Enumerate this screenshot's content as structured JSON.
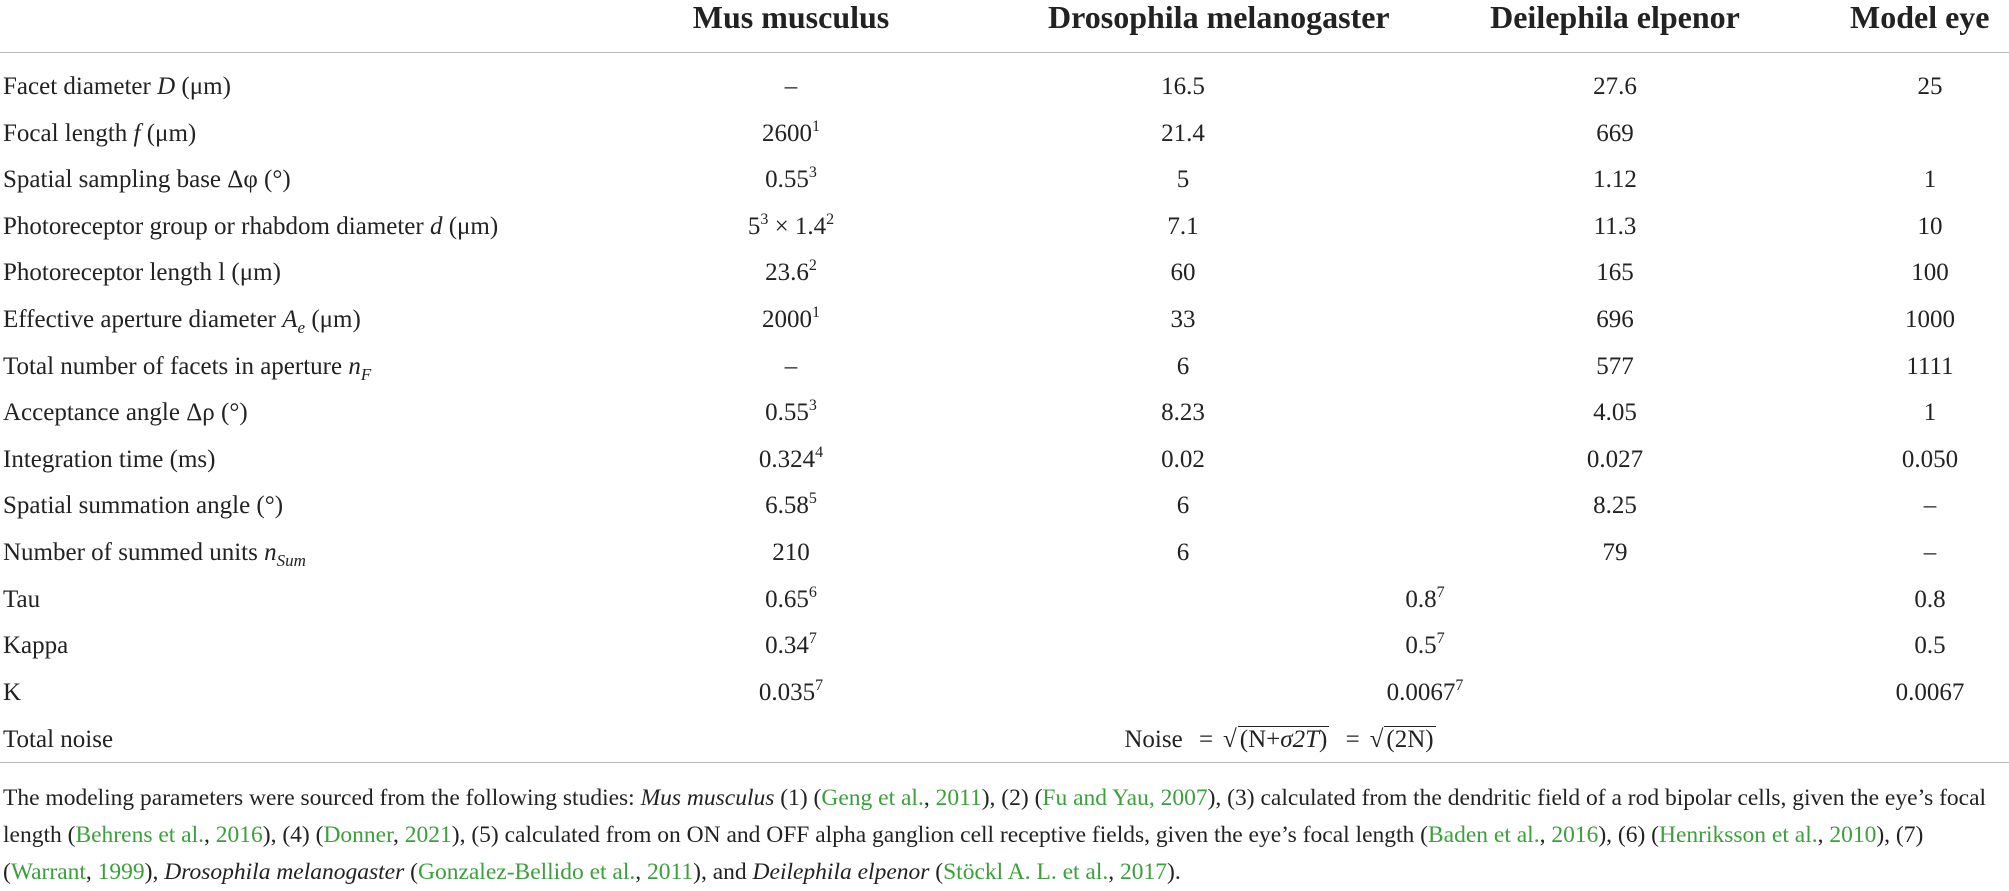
{
  "headers": {
    "col1": "Mus musculus",
    "col2": "Drosophila melanogaster",
    "col3": "Deilephila elpenor",
    "col4": "Model eye"
  },
  "rows": [
    {
      "label_pre": "Facet diameter ",
      "label_var": "D",
      "label_post": " (μm)",
      "v1": "–",
      "v2": "16.5",
      "v3": "27.6",
      "v4": "25"
    },
    {
      "label_pre": "Focal length ",
      "label_var": "f",
      "label_post": " (μm)",
      "v1": "2600",
      "v1_sup": "1",
      "v2": "21.4",
      "v3": "669",
      "v4": ""
    },
    {
      "label_pre": "Spatial sampling base Δφ (°)",
      "v1": "0.55",
      "v1_sup": "3",
      "v2": "5",
      "v3": "1.12",
      "v4": "1"
    },
    {
      "label_pre": "Photoreceptor group or rhabdom diameter ",
      "label_var": "d",
      "label_post": " (μm)",
      "v1a": "5",
      "v1a_sup": "3",
      "v1b": " × 1.4",
      "v1b_sup": "2",
      "v2": "7.1",
      "v3": "11.3",
      "v4": "10"
    },
    {
      "label_pre": "Photoreceptor length l (μm)",
      "v1": "23.6",
      "v1_sup": "2",
      "v2": "60",
      "v3": "165",
      "v4": "100"
    },
    {
      "label_pre": "Effective aperture diameter ",
      "label_var": "A",
      "label_sub": "e",
      "label_post": " (μm)",
      "v1": "2000",
      "v1_sup": "1",
      "v2": "33",
      "v3": "696",
      "v4": "1000"
    },
    {
      "label_pre": "Total number of facets in aperture ",
      "label_var": "n",
      "label_sub": "F",
      "v1": "–",
      "v2": "6",
      "v3": "577",
      "v4": "1111"
    },
    {
      "label_pre": "Acceptance angle Δρ (°)",
      "v1": "0.55",
      "v1_sup": "3",
      "v2": "8.23",
      "v3": "4.05",
      "v4": "1"
    },
    {
      "label_pre": "Integration time (ms)",
      "v1": "0.324",
      "v1_sup": "4",
      "v2": "0.02",
      "v3": "0.027",
      "v4": "0.050"
    },
    {
      "label_pre": "Spatial summation angle (°)",
      "v1": "6.58",
      "v1_sup": "5",
      "v2": "6",
      "v3": "8.25",
      "v4": "–"
    },
    {
      "label_pre": "Number of summed units ",
      "label_var": "n",
      "label_sub": "Sum",
      "v1": "210",
      "v2": "6",
      "v3": "79",
      "v4": "–"
    },
    {
      "label_pre": "Tau",
      "v1": "0.65",
      "v1_sup": "6",
      "v23": "0.8",
      "v23_sup": "7",
      "v4": "0.8"
    },
    {
      "label_pre": "Kappa",
      "v1": "0.34",
      "v1_sup": "7",
      "v23": "0.5",
      "v23_sup": "7",
      "v4": "0.5"
    },
    {
      "label_pre": "K",
      "v1": "0.035",
      "v1_sup": "7",
      "v23": "0.0067",
      "v23_sup": "7",
      "v4": "0.0067"
    }
  ],
  "noise_row": {
    "label": "Total noise",
    "prefix": "Noise",
    "eq": "=",
    "sqrt1_a": "(N+",
    "sqrt1_sigma": "σ2T",
    "sqrt1_b": ")",
    "sqrt2": "(2N)"
  },
  "footnote": {
    "t1": "The modeling parameters were sourced from the following studies: ",
    "species1": "Mus musculus",
    "t2": " (1) (",
    "r1a": "Geng et al.",
    "t3": ", ",
    "r1b": "2011",
    "t4": "), (2) (",
    "r2": "Fu and Yau, 2007",
    "t5": "), (3) calculated from the dendritic field of a rod bipolar cells, given the eye’s focal length (",
    "r3a": "Behrens et al.",
    "t6": ", ",
    "r3b": "2016",
    "t7": "), (4) (",
    "r4a": "Donner",
    "t8": ", ",
    "r4b": "2021",
    "t9": "), (5) calculated from on ON and OFF alpha ganglion cell receptive fields, given the eye’s focal length (",
    "r5a": "Baden et al.",
    "t10": ", ",
    "r5b": "2016",
    "t11": "), (6) (",
    "r6a": "Henriksson et al.",
    "t12": ", ",
    "r6b": "2010",
    "t13": "), (7) (",
    "r7a": "Warrant",
    "t14": ", ",
    "r7b": "1999",
    "t15": "), ",
    "species2": "Drosophila melanogaster",
    "t16": " (",
    "r8a": "Gonzalez-Bellido et al.",
    "t17": ", ",
    "r8b": "2011",
    "t18": "), and ",
    "species3": "Deilephila elpenor",
    "t19": " (",
    "r9a": "Stöckl A. L. et al.",
    "t20": ", ",
    "r9b": "2017",
    "t21": ")."
  },
  "colors": {
    "text": "#222222",
    "link": "#3aa03a",
    "rule": "#b9b9b9"
  }
}
